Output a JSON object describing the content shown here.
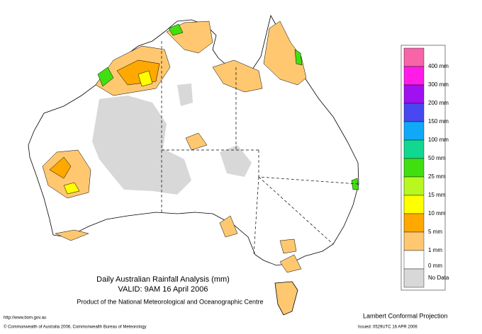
{
  "header": {
    "title": "Daily Australian Rainfall Analysis (mm)",
    "valid": "VALID: 9AM 16 April 2006",
    "product": "Product of the National Meteorological and Oceanographic Centre"
  },
  "legend": {
    "colors": [
      "#f864a8",
      "#ff1ce8",
      "#a010f0",
      "#4848f0",
      "#10a8f8",
      "#10d890",
      "#40e010",
      "#b8f820",
      "#ffff00",
      "#ffa800",
      "#ffc870",
      "#ffffff",
      "#d8d8d8"
    ],
    "labels": [
      "400 mm",
      "300 mm",
      "200 mm",
      "150 mm",
      "100 mm",
      "50 mm",
      "25 mm",
      "15 mm",
      "10 mm",
      "5 mm",
      "1 mm",
      "0 mm",
      "No Data"
    ]
  },
  "footer": {
    "url": "http://www.bom.gov.au",
    "copyright": "© Commonwealth of Australia 2006, Commonwealth Bureau of Meteorology",
    "projection": "Lambert Conformal Projection",
    "issued": "Issued: 0529UTC 16 APR 2006"
  }
}
